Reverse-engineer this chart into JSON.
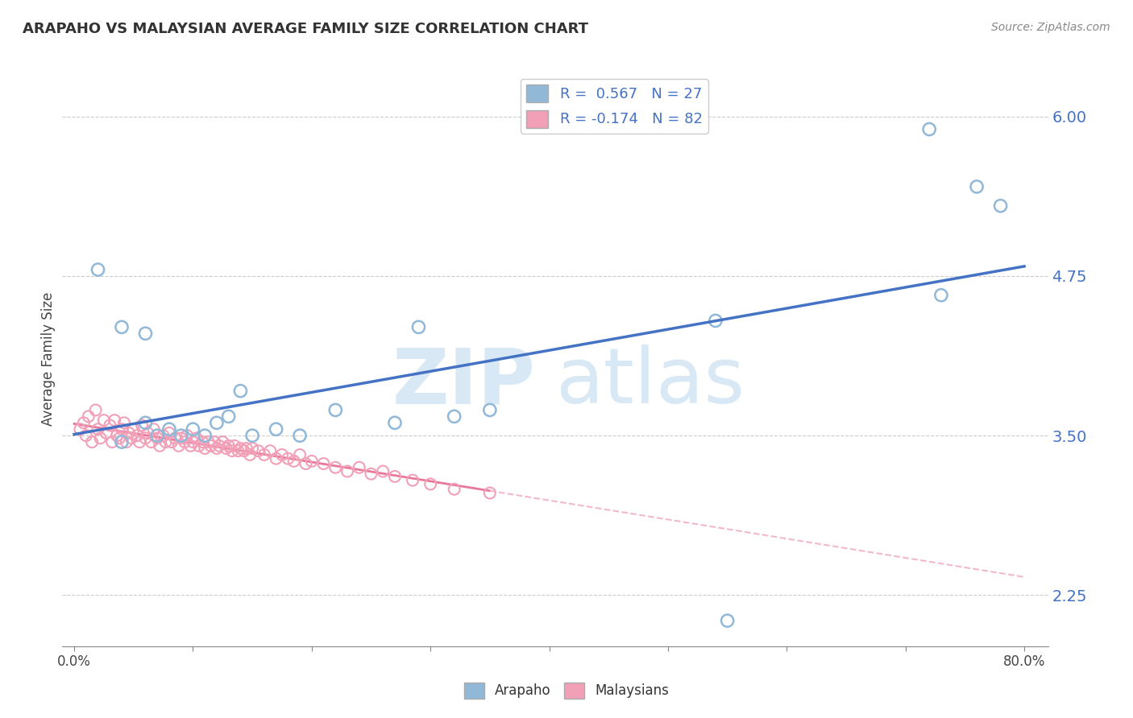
{
  "title": "ARAPAHO VS MALAYSIAN AVERAGE FAMILY SIZE CORRELATION CHART",
  "source_text": "Source: ZipAtlas.com",
  "ylabel": "Average Family Size",
  "xlim": [
    -0.01,
    0.82
  ],
  "ylim": [
    1.85,
    6.35
  ],
  "yticks": [
    2.25,
    3.5,
    4.75,
    6.0
  ],
  "xtick_positions": [
    0.0,
    0.1,
    0.2,
    0.3,
    0.4,
    0.5,
    0.6,
    0.7,
    0.8
  ],
  "xtick_labels_sparse": [
    "0.0%",
    "",
    "",
    "",
    "",
    "",
    "",
    "",
    "80.0%"
  ],
  "arapaho_color": "#92b8d8",
  "malaysian_color": "#f2a0b8",
  "trend_blue": "#4472c4",
  "trend_pink_solid": "#e8789a",
  "trend_pink_dash": "#f2b8cc",
  "legend_label1": "Arapaho",
  "legend_label2": "Malaysians",
  "arapaho_x": [
    0.02,
    0.04,
    0.04,
    0.06,
    0.06,
    0.07,
    0.08,
    0.09,
    0.1,
    0.11,
    0.12,
    0.13,
    0.14,
    0.15,
    0.17,
    0.19,
    0.22,
    0.27,
    0.29,
    0.32,
    0.35,
    0.54,
    0.55,
    0.72,
    0.73,
    0.76,
    0.78
  ],
  "arapaho_y": [
    4.8,
    4.35,
    3.45,
    4.3,
    3.6,
    3.5,
    3.55,
    3.5,
    3.55,
    3.5,
    3.6,
    3.65,
    3.85,
    3.5,
    3.55,
    3.5,
    3.7,
    3.6,
    4.35,
    3.65,
    3.7,
    4.4,
    2.05,
    5.9,
    4.6,
    5.45,
    5.3
  ],
  "malaysian_x": [
    0.005,
    0.008,
    0.01,
    0.012,
    0.015,
    0.018,
    0.02,
    0.022,
    0.025,
    0.027,
    0.03,
    0.032,
    0.034,
    0.036,
    0.038,
    0.04,
    0.042,
    0.044,
    0.046,
    0.048,
    0.05,
    0.053,
    0.055,
    0.057,
    0.06,
    0.062,
    0.065,
    0.067,
    0.07,
    0.072,
    0.075,
    0.077,
    0.08,
    0.082,
    0.085,
    0.088,
    0.09,
    0.093,
    0.095,
    0.098,
    0.1,
    0.103,
    0.105,
    0.108,
    0.11,
    0.113,
    0.115,
    0.118,
    0.12,
    0.122,
    0.125,
    0.128,
    0.13,
    0.133,
    0.135,
    0.138,
    0.14,
    0.143,
    0.145,
    0.148,
    0.15,
    0.155,
    0.16,
    0.165,
    0.17,
    0.175,
    0.18,
    0.185,
    0.19,
    0.195,
    0.2,
    0.21,
    0.22,
    0.23,
    0.24,
    0.25,
    0.26,
    0.27,
    0.285,
    0.3,
    0.32,
    0.35
  ],
  "malaysian_y": [
    3.55,
    3.6,
    3.5,
    3.65,
    3.45,
    3.7,
    3.55,
    3.48,
    3.62,
    3.52,
    3.58,
    3.45,
    3.62,
    3.5,
    3.48,
    3.55,
    3.6,
    3.45,
    3.52,
    3.48,
    3.55,
    3.5,
    3.45,
    3.58,
    3.48,
    3.52,
    3.45,
    3.55,
    3.48,
    3.42,
    3.5,
    3.45,
    3.52,
    3.45,
    3.48,
    3.42,
    3.48,
    3.45,
    3.5,
    3.42,
    3.45,
    3.48,
    3.42,
    3.45,
    3.4,
    3.45,
    3.42,
    3.45,
    3.4,
    3.42,
    3.45,
    3.4,
    3.42,
    3.38,
    3.42,
    3.38,
    3.4,
    3.38,
    3.4,
    3.35,
    3.4,
    3.38,
    3.35,
    3.38,
    3.32,
    3.35,
    3.32,
    3.3,
    3.35,
    3.28,
    3.3,
    3.28,
    3.25,
    3.22,
    3.25,
    3.2,
    3.22,
    3.18,
    3.15,
    3.12,
    3.08,
    3.05
  ]
}
